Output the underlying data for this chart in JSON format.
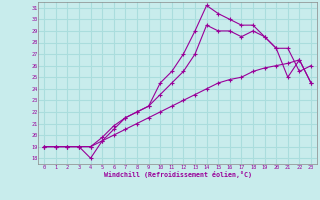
{
  "title": "",
  "xlabel": "Windchill (Refroidissement éolien,°C)",
  "ylabel": "",
  "bg_color": "#c8ecec",
  "grid_color": "#aadddd",
  "line_color": "#990099",
  "xlim": [
    -0.5,
    23.5
  ],
  "ylim": [
    17.5,
    31.5
  ],
  "xticks": [
    0,
    1,
    2,
    3,
    4,
    5,
    6,
    7,
    8,
    9,
    10,
    11,
    12,
    13,
    14,
    15,
    16,
    17,
    18,
    19,
    20,
    21,
    22,
    23
  ],
  "yticks": [
    18,
    19,
    20,
    21,
    22,
    23,
    24,
    25,
    26,
    27,
    28,
    29,
    30,
    31
  ],
  "line1_x": [
    0,
    1,
    2,
    3,
    4,
    5,
    6,
    7,
    8,
    9,
    10,
    11,
    12,
    13,
    14,
    15,
    16,
    17,
    18,
    19,
    20,
    21,
    22,
    23
  ],
  "line1_y": [
    19.0,
    19.0,
    19.0,
    19.0,
    18.0,
    19.5,
    20.5,
    21.5,
    22.0,
    22.5,
    24.5,
    25.5,
    27.0,
    29.0,
    31.2,
    30.5,
    30.0,
    29.5,
    29.5,
    28.5,
    27.5,
    25.0,
    26.5,
    24.5
  ],
  "line2_x": [
    0,
    1,
    2,
    3,
    4,
    5,
    6,
    7,
    8,
    9,
    10,
    11,
    12,
    13,
    14,
    15,
    16,
    17,
    18,
    19,
    20,
    21,
    22,
    23
  ],
  "line2_y": [
    19.0,
    19.0,
    19.0,
    19.0,
    19.0,
    19.8,
    20.8,
    21.5,
    22.0,
    22.5,
    23.5,
    24.5,
    25.5,
    27.0,
    29.5,
    29.0,
    29.0,
    28.5,
    29.0,
    28.5,
    27.5,
    27.5,
    25.5,
    26.0
  ],
  "line3_x": [
    0,
    1,
    2,
    3,
    4,
    5,
    6,
    7,
    8,
    9,
    10,
    11,
    12,
    13,
    14,
    15,
    16,
    17,
    18,
    19,
    20,
    21,
    22,
    23
  ],
  "line3_y": [
    19.0,
    19.0,
    19.0,
    19.0,
    19.0,
    19.5,
    20.0,
    20.5,
    21.0,
    21.5,
    22.0,
    22.5,
    23.0,
    23.5,
    24.0,
    24.5,
    24.8,
    25.0,
    25.5,
    25.8,
    26.0,
    26.2,
    26.5,
    24.5
  ]
}
